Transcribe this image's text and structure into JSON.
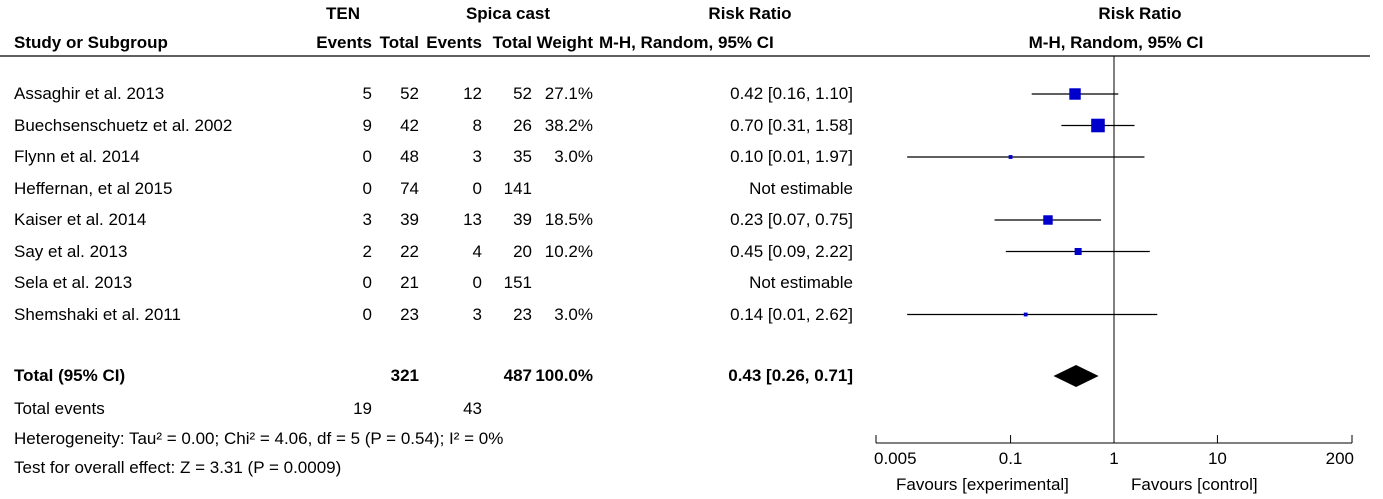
{
  "header": {
    "group1_name": "TEN",
    "group2_name": "Spica cast",
    "effect_title": "Risk Ratio",
    "plot_title": "Risk Ratio",
    "col_study": "Study or Subgroup",
    "col_events1": "Events",
    "col_total1": "Total",
    "col_events2": "Events",
    "col_total2": "Total",
    "col_weight": "Weight",
    "col_ci": "M-H, Random, 95% CI",
    "plot_method": "M-H, Random, 95% CI"
  },
  "total": {
    "label": "Total (95% CI)",
    "total1": "321",
    "total2": "487",
    "weight": "100.0%",
    "ci": "0.43 [0.26, 0.71]"
  },
  "total_events": {
    "label": "Total events",
    "events1": "19",
    "events2": "43"
  },
  "heterogeneity": "Heterogeneity: Tau² = 0.00; Chi² = 4.06, df = 5 (P = 0.54); I² = 0%",
  "overall_effect": "Test for overall effect: Z = 3.31 (P = 0.0009)",
  "favours_left": "Favours [experimental]",
  "favours_right": "Favours [control]",
  "colors": {
    "marker": "#0000cc",
    "line": "#000000"
  },
  "chart_data": {
    "type": "forest",
    "x_scale": "log",
    "xlim": [
      0.005,
      200
    ],
    "null_value": 1,
    "x_ticks": [
      {
        "value": 0.005,
        "label": "0.005"
      },
      {
        "value": 0.1,
        "label": "0.1"
      },
      {
        "value": 1,
        "label": "1"
      },
      {
        "value": 10,
        "label": "10"
      },
      {
        "value": 200,
        "label": "200"
      }
    ],
    "studies": [
      {
        "study": "Assaghir et al. 2013",
        "events1": "5",
        "total1": "52",
        "events2": "12",
        "total2": "52",
        "weight": "27.1%",
        "weight_value": 27.1,
        "ci_text": "0.42 [0.16, 1.10]",
        "rr": 0.42,
        "lower": 0.16,
        "upper": 1.1
      },
      {
        "study": "Buechsenschuetz et al. 2002",
        "events1": "9",
        "total1": "42",
        "events2": "8",
        "total2": "26",
        "weight": "38.2%",
        "weight_value": 38.2,
        "ci_text": "0.70 [0.31, 1.58]",
        "rr": 0.7,
        "lower": 0.31,
        "upper": 1.58
      },
      {
        "study": "Flynn et al. 2014",
        "events1": "0",
        "total1": "48",
        "events2": "3",
        "total2": "35",
        "weight": "3.0%",
        "weight_value": 3.0,
        "ci_text": "0.10 [0.01, 1.97]",
        "rr": 0.1,
        "lower": 0.01,
        "upper": 1.97
      },
      {
        "study": "Heffernan, et al 2015",
        "events1": "0",
        "total1": "74",
        "events2": "0",
        "total2": "141",
        "weight": "",
        "weight_value": null,
        "ci_text": "Not estimable",
        "rr": null,
        "lower": null,
        "upper": null
      },
      {
        "study": "Kaiser et al. 2014",
        "events1": "3",
        "total1": "39",
        "events2": "13",
        "total2": "39",
        "weight": "18.5%",
        "weight_value": 18.5,
        "ci_text": "0.23 [0.07, 0.75]",
        "rr": 0.23,
        "lower": 0.07,
        "upper": 0.75
      },
      {
        "study": "Say et al. 2013",
        "events1": "2",
        "total1": "22",
        "events2": "4",
        "total2": "20",
        "weight": "10.2%",
        "weight_value": 10.2,
        "ci_text": "0.45 [0.09, 2.22]",
        "rr": 0.45,
        "lower": 0.09,
        "upper": 2.22
      },
      {
        "study": "Sela et al. 2013",
        "events1": "0",
        "total1": "21",
        "events2": "0",
        "total2": "151",
        "weight": "",
        "weight_value": null,
        "ci_text": "Not estimable",
        "rr": null,
        "lower": null,
        "upper": null
      },
      {
        "study": "Shemshaki et al. 2011",
        "events1": "0",
        "total1": "23",
        "events2": "3",
        "total2": "23",
        "weight": "3.0%",
        "weight_value": 3.0,
        "ci_text": "0.14 [0.01, 2.62]",
        "rr": 0.14,
        "lower": 0.01,
        "upper": 2.62
      }
    ],
    "pooled": {
      "rr": 0.43,
      "lower": 0.26,
      "upper": 0.71
    }
  }
}
